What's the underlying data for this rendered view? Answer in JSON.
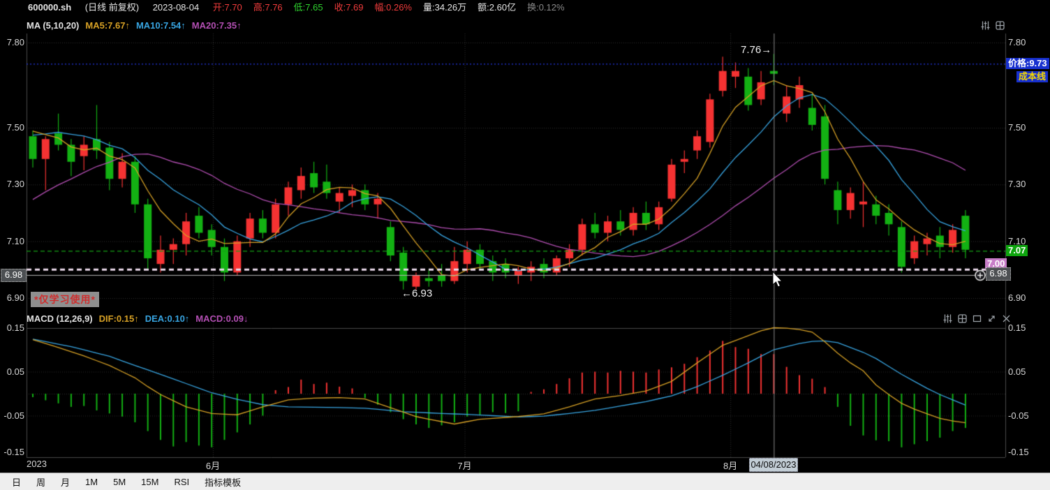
{
  "header": {
    "symbol": "600000.sh",
    "mode": "(日线 前复权)",
    "date": "2023-08-04",
    "fields": [
      {
        "text": "开:7.70",
        "color": "#f23c3c"
      },
      {
        "text": "高:7.76",
        "color": "#f23c3c"
      },
      {
        "text": "低:7.65",
        "color": "#2fd52f"
      },
      {
        "text": "收:7.69",
        "color": "#f23c3c"
      },
      {
        "text": "幅:0.26%",
        "color": "#f23c3c"
      },
      {
        "text": "量:34.26万",
        "color": "#e6e6e6"
      },
      {
        "text": "额:2.60亿",
        "color": "#e6e6e6"
      },
      {
        "text": "换:0.12%",
        "color": "#8a8a8a"
      }
    ]
  },
  "ma_legend": [
    {
      "text": "MA (5,10,20)",
      "color": "#e3e3e3"
    },
    {
      "text": "MA5:7.67↑",
      "color": "#d7a125"
    },
    {
      "text": "MA10:7.54↑",
      "color": "#38a5e2"
    },
    {
      "text": "MA20:7.35↑",
      "color": "#b44fb4"
    }
  ],
  "macd_legend": [
    {
      "text": "MACD (12,26,9)",
      "color": "#e3e3e3"
    },
    {
      "text": "DIF:0.15↑",
      "color": "#d7a125"
    },
    {
      "text": "DEA:0.10↑",
      "color": "#38a5e2"
    },
    {
      "text": "MACD:0.09↓",
      "color": "#b44fb4"
    }
  ],
  "main_chart_icons": [
    "adjust-icon",
    "panes-icon"
  ],
  "macd_icons": [
    "adjust-icon",
    "panes-icon",
    "window-icon",
    "expand-icon",
    "close-icon"
  ],
  "overlays": {
    "price_tag": "价格:9.73",
    "cost_tag": "成本线",
    "last_price_label": "7.07",
    "drawn_line_label": "6.98",
    "hidden_line_label": "7.00",
    "high_annotation": "7.76→",
    "low_annotation": "←6.93",
    "watermark": "*仅学习使用*"
  },
  "crosshair": {
    "date_label": "04/08/2023"
  },
  "bottom_tabs": [
    "日",
    "周",
    "月",
    "1M",
    "5M",
    "15M",
    "RSI",
    "指标模板"
  ],
  "colors": {
    "up": "#f53232",
    "down": "#13b113",
    "ma5": "#d7a125",
    "ma10": "#38a5e2",
    "ma20": "#b44fb4",
    "grid": "#2f2f2f",
    "border": "#4a4a4a",
    "crosshair": "#8a8a8a",
    "blue_line": "#2438e8",
    "last_close_line": "#14a114",
    "drawn_dash_line": "#ead9ea",
    "solid_line": "#b9b9b9",
    "tag_blue_bg": "#1730cf",
    "tag_green_bg": "#0ea50e",
    "tag_pink_bg": "#c87dc8"
  },
  "chart_data": {
    "type": "candlestick",
    "title": "600000.sh daily candlestick with MA(5,10,20) and MACD(12,26,9)",
    "price_ticks": [
      {
        "label": "7.80",
        "price": 7.8
      },
      {
        "label": "7.50",
        "price": 7.5
      },
      {
        "label": "7.30",
        "price": 7.3
      },
      {
        "label": "7.10",
        "price": 7.1
      },
      {
        "label": "6.90",
        "price": 6.9
      }
    ],
    "boxed_price_tick": {
      "label": "6.98",
      "price": 6.98
    },
    "macd_ticks": [
      {
        "label": "0.15",
        "value": 0.15
      },
      {
        "label": "0.05",
        "value": 0.05
      },
      {
        "label": "-0.05",
        "value": -0.05
      },
      {
        "label": "-0.15",
        "value": -0.15
      }
    ],
    "x_ticks": [
      {
        "label": "2023",
        "i": 0.3,
        "grid": false
      },
      {
        "label": "6月",
        "i": 14.1,
        "grid": true
      },
      {
        "label": "7月",
        "i": 33.8,
        "grid": true
      },
      {
        "label": "8月",
        "i": 54.6,
        "grid": true
      }
    ],
    "crosshair_i": 58,
    "lines": {
      "blue_dotted_price": 7.724,
      "last_close_price": 7.065,
      "drawn_dashed_price": 7.0,
      "solid_line_price": 6.98
    },
    "annotations": [
      {
        "text": "7.76→",
        "i": 58,
        "price": 7.795
      },
      {
        "text": "←6.93",
        "i": 29,
        "price": 6.885
      }
    ],
    "ma_periods": [
      5,
      10,
      20
    ],
    "prehistory_closes": [
      6.9,
      6.92,
      6.95,
      6.96,
      6.98,
      7.0,
      7.02,
      7.0,
      7.05,
      7.02,
      7.3,
      7.42,
      7.38,
      7.45,
      7.5,
      7.55,
      7.52,
      7.5,
      7.54,
      7.49
    ],
    "candles": [
      [
        7.47,
        7.49,
        7.36,
        7.39
      ],
      [
        7.39,
        7.47,
        7.28,
        7.46
      ],
      [
        7.48,
        7.55,
        7.42,
        7.44
      ],
      [
        7.44,
        7.46,
        7.33,
        7.38
      ],
      [
        7.4,
        7.47,
        7.35,
        7.44
      ],
      [
        7.46,
        7.58,
        7.39,
        7.42
      ],
      [
        7.43,
        7.45,
        7.28,
        7.32
      ],
      [
        7.32,
        7.41,
        7.29,
        7.38
      ],
      [
        7.38,
        7.4,
        7.2,
        7.23
      ],
      [
        7.23,
        7.25,
        7.0,
        7.04
      ],
      [
        7.02,
        7.12,
        6.99,
        7.07
      ],
      [
        7.07,
        7.11,
        7.02,
        7.09
      ],
      [
        7.09,
        7.2,
        7.05,
        7.17
      ],
      [
        7.19,
        7.22,
        7.11,
        7.13
      ],
      [
        7.14,
        7.16,
        7.05,
        7.08
      ],
      [
        7.08,
        7.11,
        6.96,
        6.99
      ],
      [
        6.99,
        7.12,
        6.98,
        7.1
      ],
      [
        7.11,
        7.2,
        7.08,
        7.18
      ],
      [
        7.18,
        7.21,
        7.11,
        7.13
      ],
      [
        7.13,
        7.25,
        7.11,
        7.23
      ],
      [
        7.23,
        7.31,
        7.19,
        7.29
      ],
      [
        7.28,
        7.36,
        7.25,
        7.33
      ],
      [
        7.34,
        7.38,
        7.27,
        7.29
      ],
      [
        7.31,
        7.37,
        7.25,
        7.27
      ],
      [
        7.24,
        7.29,
        7.2,
        7.27
      ],
      [
        7.26,
        7.3,
        7.22,
        7.28
      ],
      [
        7.28,
        7.3,
        7.21,
        7.23
      ],
      [
        7.23,
        7.27,
        7.18,
        7.25
      ],
      [
        7.15,
        7.17,
        7.03,
        7.05
      ],
      [
        7.06,
        7.08,
        6.93,
        6.96
      ],
      [
        6.94,
        6.99,
        6.93,
        6.98
      ],
      [
        6.97,
        7.0,
        6.94,
        6.96
      ],
      [
        6.98,
        7.02,
        6.94,
        6.96
      ],
      [
        6.96,
        7.08,
        6.95,
        7.03
      ],
      [
        7.02,
        7.1,
        6.99,
        7.07
      ],
      [
        7.07,
        7.09,
        7.0,
        7.02
      ],
      [
        7.03,
        7.05,
        6.96,
        6.99
      ],
      [
        7.02,
        7.04,
        6.97,
        6.99
      ],
      [
        6.98,
        7.01,
        6.95,
        7.0
      ],
      [
        6.99,
        7.03,
        6.96,
        7.01
      ],
      [
        7.02,
        7.04,
        6.97,
        6.99
      ],
      [
        6.99,
        7.05,
        6.98,
        7.04
      ],
      [
        7.04,
        7.09,
        7.01,
        7.07
      ],
      [
        7.07,
        7.18,
        7.05,
        7.16
      ],
      [
        7.16,
        7.2,
        7.11,
        7.13
      ],
      [
        7.13,
        7.19,
        7.1,
        7.17
      ],
      [
        7.17,
        7.21,
        7.12,
        7.14
      ],
      [
        7.14,
        7.22,
        7.12,
        7.2
      ],
      [
        7.2,
        7.24,
        7.14,
        7.16
      ],
      [
        7.16,
        7.24,
        7.14,
        7.22
      ],
      [
        7.25,
        7.39,
        7.24,
        7.37
      ],
      [
        7.38,
        7.42,
        7.34,
        7.39
      ],
      [
        7.42,
        7.49,
        7.39,
        7.47
      ],
      [
        7.45,
        7.62,
        7.43,
        7.6
      ],
      [
        7.63,
        7.75,
        7.61,
        7.7
      ],
      [
        7.68,
        7.73,
        7.64,
        7.7
      ],
      [
        7.68,
        7.71,
        7.56,
        7.58
      ],
      [
        7.6,
        7.7,
        7.58,
        7.66
      ],
      [
        7.7,
        7.76,
        7.65,
        7.69
      ],
      [
        7.55,
        7.65,
        7.52,
        7.61
      ],
      [
        7.6,
        7.68,
        7.57,
        7.65
      ],
      [
        7.57,
        7.62,
        7.49,
        7.51
      ],
      [
        7.54,
        7.58,
        7.3,
        7.32
      ],
      [
        7.28,
        7.31,
        7.16,
        7.21
      ],
      [
        7.21,
        7.29,
        7.18,
        7.27
      ],
      [
        7.23,
        7.31,
        7.15,
        7.24
      ],
      [
        7.23,
        7.26,
        7.16,
        7.19
      ],
      [
        7.2,
        7.23,
        7.12,
        7.16
      ],
      [
        7.15,
        7.17,
        6.99,
        7.01
      ],
      [
        7.04,
        7.12,
        7.02,
        7.1
      ],
      [
        7.09,
        7.13,
        7.05,
        7.11
      ],
      [
        7.12,
        7.15,
        7.04,
        7.08
      ],
      [
        7.08,
        7.16,
        7.06,
        7.14
      ],
      [
        7.19,
        7.21,
        7.04,
        7.07
      ]
    ],
    "dif_keypoints": [
      [
        0,
        0.123
      ],
      [
        2,
        0.105
      ],
      [
        4,
        0.086
      ],
      [
        6,
        0.064
      ],
      [
        8,
        0.036
      ],
      [
        9,
        0.016
      ],
      [
        10,
        -0.002
      ],
      [
        12,
        -0.03
      ],
      [
        14,
        -0.045
      ],
      [
        16,
        -0.048
      ],
      [
        18,
        -0.03
      ],
      [
        20,
        -0.014
      ],
      [
        22,
        -0.01
      ],
      [
        24,
        -0.009
      ],
      [
        26,
        -0.012
      ],
      [
        28,
        -0.032
      ],
      [
        30,
        -0.052
      ],
      [
        31,
        -0.058
      ],
      [
        33,
        -0.069
      ],
      [
        35,
        -0.058
      ],
      [
        38,
        -0.052
      ],
      [
        40,
        -0.046
      ],
      [
        42,
        -0.03
      ],
      [
        44,
        -0.012
      ],
      [
        46,
        -0.004
      ],
      [
        48,
        0.006
      ],
      [
        50,
        0.028
      ],
      [
        52,
        0.07
      ],
      [
        54,
        0.11
      ],
      [
        56,
        0.132
      ],
      [
        57,
        0.143
      ],
      [
        58,
        0.15
      ],
      [
        59,
        0.149
      ],
      [
        60,
        0.146
      ],
      [
        61,
        0.14
      ],
      [
        62,
        0.118
      ],
      [
        63,
        0.092
      ],
      [
        64,
        0.07
      ],
      [
        65,
        0.052
      ],
      [
        66,
        0.02
      ],
      [
        67,
        -0.002
      ],
      [
        68,
        -0.022
      ],
      [
        69,
        -0.035
      ],
      [
        70,
        -0.046
      ],
      [
        71,
        -0.056
      ],
      [
        72,
        -0.062
      ],
      [
        73,
        -0.066
      ]
    ],
    "dea_keypoints": [
      [
        0,
        0.124
      ],
      [
        3,
        0.107
      ],
      [
        6,
        0.085
      ],
      [
        8,
        0.064
      ],
      [
        10,
        0.044
      ],
      [
        12,
        0.023
      ],
      [
        14,
        0.002
      ],
      [
        16,
        -0.013
      ],
      [
        18,
        -0.025
      ],
      [
        20,
        -0.03
      ],
      [
        23,
        -0.031
      ],
      [
        26,
        -0.033
      ],
      [
        29,
        -0.041
      ],
      [
        32,
        -0.045
      ],
      [
        34,
        -0.047
      ],
      [
        36,
        -0.05
      ],
      [
        38,
        -0.053
      ],
      [
        40,
        -0.051
      ],
      [
        42,
        -0.045
      ],
      [
        44,
        -0.038
      ],
      [
        46,
        -0.028
      ],
      [
        48,
        -0.018
      ],
      [
        50,
        -0.005
      ],
      [
        52,
        0.016
      ],
      [
        54,
        0.042
      ],
      [
        56,
        0.07
      ],
      [
        58,
        0.1
      ],
      [
        60,
        0.114
      ],
      [
        61,
        0.119
      ],
      [
        62,
        0.12
      ],
      [
        63,
        0.116
      ],
      [
        65,
        0.094
      ],
      [
        66,
        0.08
      ],
      [
        67,
        0.062
      ],
      [
        68,
        0.044
      ],
      [
        69,
        0.028
      ],
      [
        70,
        0.012
      ],
      [
        71,
        -0.002
      ],
      [
        72,
        -0.014
      ],
      [
        73,
        -0.026
      ]
    ],
    "macd_hist": [
      -0.008,
      -0.015,
      -0.022,
      -0.03,
      -0.028,
      -0.038,
      -0.045,
      -0.052,
      -0.065,
      -0.085,
      -0.105,
      -0.12,
      -0.11,
      -0.118,
      -0.122,
      -0.105,
      -0.088,
      -0.07,
      -0.05,
      0.008,
      0.015,
      0.032,
      0.022,
      0.025,
      0.016,
      0.012,
      -0.01,
      -0.025,
      -0.042,
      -0.058,
      -0.07,
      -0.078,
      -0.072,
      -0.065,
      -0.052,
      -0.048,
      -0.042,
      -0.044,
      -0.04,
      0.004,
      0.01,
      0.022,
      0.035,
      0.048,
      0.05,
      0.048,
      0.052,
      0.05,
      0.048,
      0.055,
      0.06,
      0.068,
      0.083,
      0.098,
      0.12,
      0.106,
      0.102,
      0.09,
      0.09,
      0.061,
      0.042,
      0.034,
      0.015,
      -0.03,
      -0.073,
      -0.095,
      -0.106,
      -0.108,
      -0.122,
      -0.115,
      -0.108,
      -0.1,
      -0.085,
      -0.078
    ]
  }
}
